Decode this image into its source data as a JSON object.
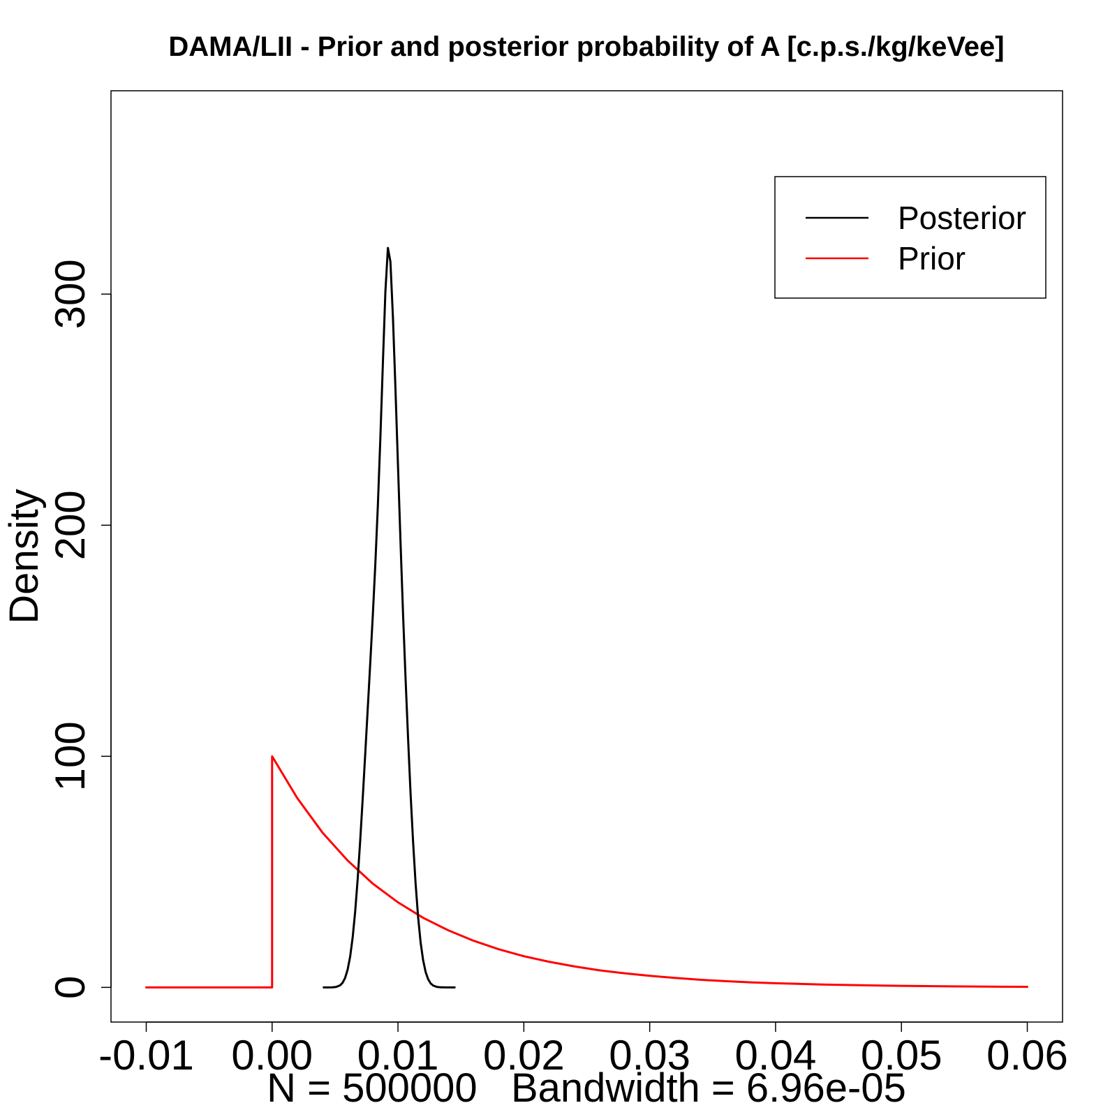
{
  "chart_data": {
    "type": "line",
    "title": "DAMA/LII - Prior and posterior probability of A [c.p.s./kg/keVee]",
    "xlabel": "N = 500000   Bandwidth = 6.96e-05",
    "ylabel": "Density",
    "xlim": [
      -0.0128,
      0.0628
    ],
    "ylim": [
      -15,
      388
    ],
    "x_ticks": [
      -0.01,
      0.0,
      0.01,
      0.02,
      0.03,
      0.04,
      0.05,
      0.06
    ],
    "x_tick_labels": [
      "-0.01",
      "0.00",
      "0.01",
      "0.02",
      "0.03",
      "0.04",
      "0.05",
      "0.06"
    ],
    "y_ticks": [
      0,
      100,
      200,
      300
    ],
    "y_tick_labels": [
      "0",
      "100",
      "200",
      "300"
    ],
    "legend_position": "top-right",
    "series": [
      {
        "name": "Posterior",
        "color": "#000000",
        "x": [
          0.0041,
          0.0044,
          0.0048,
          0.0051,
          0.0054,
          0.0056,
          0.0058,
          0.006,
          0.0062,
          0.0064,
          0.0066,
          0.0068,
          0.007,
          0.0072,
          0.0074,
          0.0076,
          0.0078,
          0.008,
          0.0082,
          0.0084,
          0.0086,
          0.0088,
          0.009,
          0.0092,
          0.0094,
          0.0096,
          0.0098,
          0.01,
          0.0102,
          0.0104,
          0.0106,
          0.0108,
          0.011,
          0.0112,
          0.0114,
          0.0116,
          0.0118,
          0.012,
          0.0122,
          0.0124,
          0.0126,
          0.0128,
          0.0131,
          0.0134,
          0.0138,
          0.0142,
          0.0145
        ],
        "values": [
          0.0,
          0.002,
          0.033,
          0.21,
          0.89,
          2.0,
          4.1,
          7.7,
          13.3,
          21.6,
          32.8,
          47.0,
          63.6,
          81.9,
          101.2,
          120.8,
          140.6,
          161.0,
          183.1,
          208.3,
          237.6,
          270.0,
          301.0,
          320.0,
          314.0,
          290.0,
          259.0,
          226.0,
          193.0,
          162.0,
          134.0,
          108.0,
          84.0,
          63.0,
          45.0,
          30.4,
          19.4,
          11.7,
          6.6,
          3.5,
          1.7,
          0.79,
          0.2,
          0.04,
          0.004,
          0.0,
          0.0
        ]
      },
      {
        "name": "Prior",
        "color": "#ff0000",
        "x": [
          -0.01,
          0.0,
          0.0,
          0.002,
          0.004,
          0.006,
          0.008,
          0.01,
          0.012,
          0.014,
          0.016,
          0.018,
          0.02,
          0.022,
          0.024,
          0.026,
          0.028,
          0.03,
          0.032,
          0.034,
          0.036,
          0.038,
          0.04,
          0.042,
          0.044,
          0.046,
          0.048,
          0.05,
          0.052,
          0.054,
          0.056,
          0.058,
          0.06
        ],
        "values": [
          0.0,
          0.0,
          100.0,
          81.9,
          67.0,
          54.9,
          44.9,
          36.8,
          30.1,
          24.7,
          20.2,
          16.5,
          13.5,
          11.1,
          9.1,
          7.4,
          6.1,
          5.0,
          4.1,
          3.3,
          2.7,
          2.2,
          1.8,
          1.5,
          1.2,
          1.0,
          0.82,
          0.67,
          0.55,
          0.45,
          0.37,
          0.3,
          0.25
        ]
      }
    ]
  }
}
